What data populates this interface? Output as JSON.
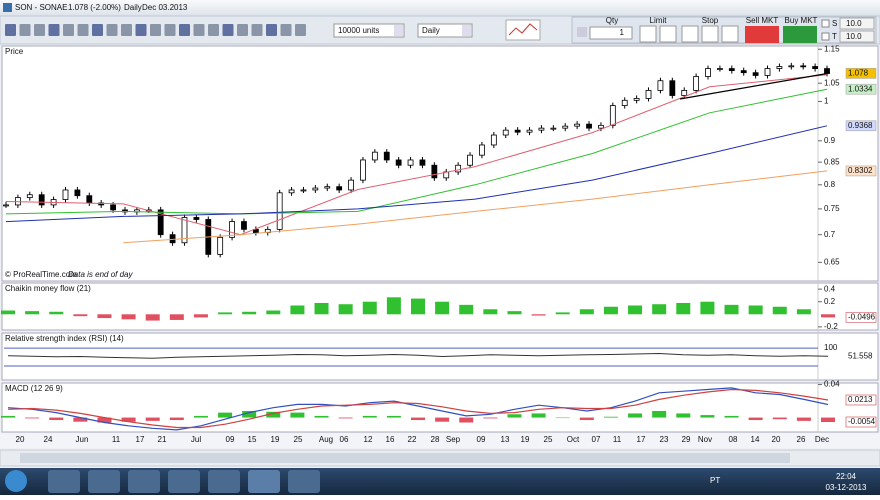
{
  "title_bar": [
    "SON - SONAE",
    "1.078 (-2.00%)",
    "Daily",
    "Dec 03.2013"
  ],
  "toolbar": {
    "units": "10000 units",
    "period": "Daily"
  },
  "order": {
    "qty_label": "Qty",
    "limit_label": "Limit",
    "stop_label": "Stop",
    "sell": "Sell MKT",
    "buy": "Buy MKT",
    "qty": 1,
    "s_label": "S",
    "t_label": "T",
    "s_value": "10.0",
    "t_value": "10.0"
  },
  "price_panel": {
    "type": "candlestick",
    "header": "Price",
    "log_scale": true,
    "ylim": [
      0.62,
      1.16
    ],
    "yticks": [
      1.15,
      1.05,
      1,
      0.9,
      0.85,
      0.8,
      0.75,
      0.7,
      0.65
    ],
    "close": [
      0.758,
      0.773,
      0.779,
      0.758,
      0.769,
      0.789,
      0.777,
      0.762,
      0.758,
      0.748,
      0.744,
      0.748,
      0.748,
      0.7,
      0.685,
      0.733,
      0.729,
      0.664,
      0.695,
      0.725,
      0.71,
      0.704,
      0.71,
      0.783,
      0.789,
      0.789,
      0.793,
      0.796,
      0.789,
      0.81,
      0.855,
      0.873,
      0.855,
      0.843,
      0.855,
      0.843,
      0.815,
      0.828,
      0.843,
      0.866,
      0.89,
      0.914,
      0.926,
      0.921,
      0.926,
      0.931,
      0.931,
      0.936,
      0.941,
      0.931,
      0.938,
      0.989,
      1.003,
      1.008,
      1.03,
      1.057,
      1.016,
      1.03,
      1.069,
      1.092,
      1.092,
      1.086,
      1.08,
      1.072,
      1.092,
      1.098,
      1.1,
      1.098,
      1.092,
      1.078
    ],
    "moving_averages": [
      {
        "color": "#e06070",
        "values": [
          0.765,
          0.76,
          0.7,
          0.79,
          0.84,
          0.92,
          1.04,
          1.074
        ]
      },
      {
        "color": "#30c030",
        "values": [
          0.74,
          0.745,
          0.74,
          0.745,
          0.8,
          0.87,
          0.97,
          1.0334
        ]
      },
      {
        "color": "#2030b0",
        "values": [
          0.725,
          0.735,
          0.74,
          0.75,
          0.77,
          0.81,
          0.87,
          0.9368
        ]
      },
      {
        "color": "#f0a060",
        "values": [
          null,
          0.685,
          0.7,
          0.72,
          0.745,
          0.77,
          0.8,
          0.8302
        ]
      }
    ],
    "readouts": [
      {
        "value": 1.078,
        "color": "#f5c000"
      },
      {
        "value": 1.0334,
        "color": "#c8f0c8"
      },
      {
        "value": 0.9368,
        "color": "#d0d8ff"
      },
      {
        "value": 0.8302,
        "color": "#ffe0c8"
      }
    ],
    "watermark": "© ProRealTime.com",
    "note": "Data is end of day"
  },
  "cmf_panel": {
    "type": "bar",
    "header": "Chaikin money flow (21)",
    "ylim": [
      -0.25,
      0.45
    ],
    "yticks": [
      0.4,
      0.2,
      -0.2
    ],
    "values": [
      0.06,
      0.05,
      0.04,
      -0.03,
      -0.06,
      -0.08,
      -0.1,
      -0.09,
      -0.05,
      0.03,
      0.04,
      0.06,
      0.14,
      0.18,
      0.16,
      0.2,
      0.27,
      0.25,
      0.2,
      0.15,
      0.08,
      0.05,
      -0.02,
      0.03,
      0.08,
      0.12,
      0.14,
      0.16,
      0.18,
      0.2,
      0.15,
      0.14,
      0.12,
      0.08,
      -0.0496
    ],
    "up_color": "#30c030",
    "down_color": "#e05060"
  },
  "rsi_panel": {
    "type": "line",
    "header": "Relative strength index (RSI) (14)",
    "ylim": [
      -78,
      172
    ],
    "yticks": [
      100
    ],
    "values": [
      55,
      52,
      48,
      50,
      45,
      42,
      40,
      45,
      48,
      52,
      55,
      58,
      62,
      60,
      55,
      58,
      62,
      58,
      50,
      55,
      60,
      58,
      55,
      57,
      60,
      62,
      65,
      68,
      60,
      58,
      60,
      55,
      52,
      55,
      51.558
    ],
    "color": "#333333"
  },
  "macd_panel": {
    "type": "line",
    "header": "MACD (12 26 9)",
    "ylim": [
      -0.0175,
      0.0407
    ],
    "yticks": [
      0.04
    ],
    "macd": {
      "color": "#3050c0",
      "values": [
        0.012,
        0.01,
        0.006,
        0.0,
        -0.006,
        -0.01,
        -0.013,
        -0.015,
        -0.01,
        -0.002,
        0.006,
        0.012,
        0.016,
        0.016,
        0.014,
        0.018,
        0.02,
        0.014,
        0.008,
        0.002,
        0.004,
        0.01,
        0.015,
        0.012,
        0.008,
        0.012,
        0.02,
        0.03,
        0.032,
        0.034,
        0.036,
        0.03,
        0.028,
        0.022,
        0.0159
      ]
    },
    "signal": {
      "color": "#d04040",
      "values": [
        0.01,
        0.011,
        0.009,
        0.005,
        0.0,
        -0.005,
        -0.009,
        -0.012,
        -0.012,
        -0.008,
        -0.002,
        0.005,
        0.01,
        0.014,
        0.015,
        0.016,
        0.018,
        0.017,
        0.013,
        0.008,
        0.005,
        0.006,
        0.01,
        0.012,
        0.011,
        0.011,
        0.015,
        0.022,
        0.027,
        0.031,
        0.034,
        0.033,
        0.03,
        0.026,
        0.0213
      ]
    },
    "histogram_last": -0.0054
  },
  "x_axis": [
    "20",
    "24",
    "Jun",
    "11",
    "17",
    "21",
    "Jul",
    "09",
    "15",
    "19",
    "25",
    "Aug",
    "06",
    "12",
    "16",
    "22",
    "28",
    "Sep",
    "09",
    "13",
    "19",
    "25",
    "Oct",
    "07",
    "11",
    "17",
    "23",
    "29",
    "Nov",
    "08",
    "14",
    "20",
    "26",
    "Dec"
  ],
  "taskbar": {
    "language": "PT",
    "time": "22:04",
    "date": "03-12-2013"
  }
}
